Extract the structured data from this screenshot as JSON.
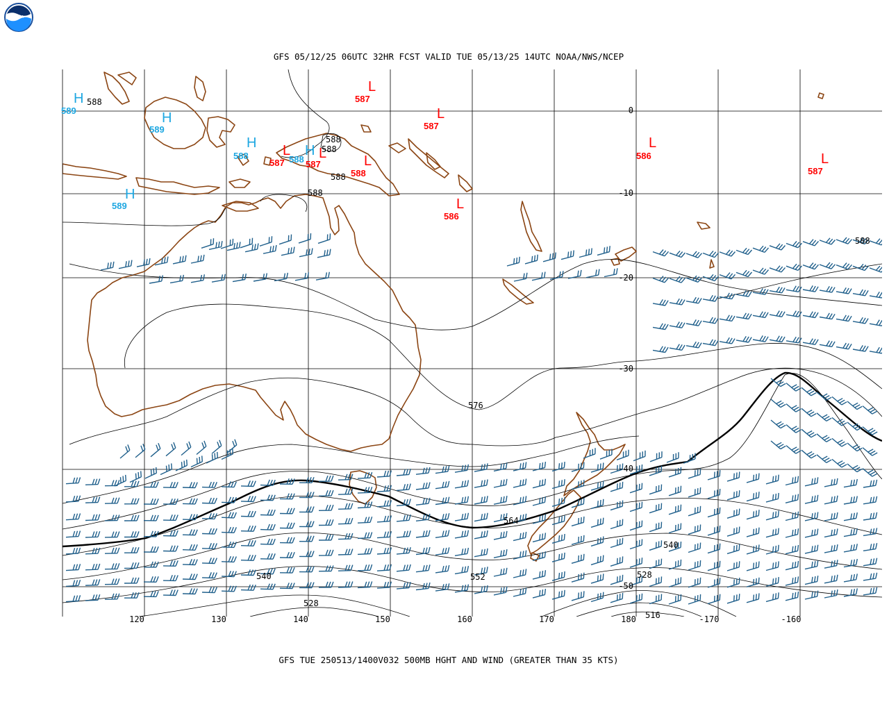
{
  "logo_text": "NOAA",
  "header_title": "GFS 05/12/25 06UTC 32HR FCST VALID TUE 05/13/25 14UTC NOAA/NWS/NCEP",
  "footer_title": "GFS TUE 250513/1400V032 500MB HGHT AND WIND (GREATER THAN 35 KTS)",
  "colors": {
    "coast": "#8b4513",
    "high": "#1ea7e1",
    "low": "#ff0000",
    "barb": "#1f5f8b",
    "contour": "#000000",
    "grid": "#000000"
  },
  "lon_labels": [
    "120",
    "130",
    "140",
    "150",
    "160",
    "170",
    "180",
    "-170",
    "-160"
  ],
  "lat_labels": [
    "0",
    "-10",
    "-20",
    "-30",
    "-40",
    "-50"
  ],
  "contour_labels": [
    "588",
    "588",
    "588",
    "588",
    "588",
    "588",
    "576",
    "564",
    "552",
    "540",
    "540",
    "528",
    "528",
    "516"
  ],
  "highs": [
    {
      "letter": "H",
      "value": "589"
    },
    {
      "letter": "H",
      "value": "589"
    },
    {
      "letter": "H",
      "value": "588"
    },
    {
      "letter": "H",
      "value": "588"
    },
    {
      "letter": "H",
      "value": "589"
    }
  ],
  "lows": [
    {
      "letter": "L",
      "value": "587"
    },
    {
      "letter": "L",
      "value": "587"
    },
    {
      "letter": "L",
      "value": "587"
    },
    {
      "letter": "L",
      "value": "587"
    },
    {
      "letter": "L",
      "value": "588"
    },
    {
      "letter": "L",
      "value": "586"
    },
    {
      "letter": "L",
      "value": "586"
    },
    {
      "letter": "L",
      "value": "587"
    }
  ]
}
